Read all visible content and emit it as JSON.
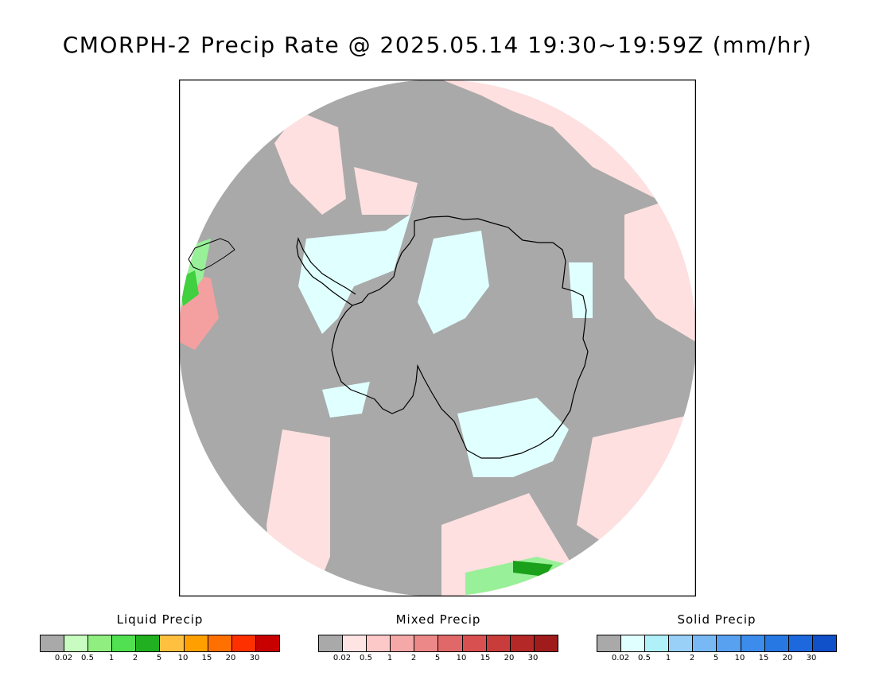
{
  "title": "CMORPH-2 Precip Rate @ 2025.05.14 19:30~19:59Z (mm/hr)",
  "map": {
    "projection": "south-polar-stereographic",
    "colors": {
      "ocean_no_precip": "#a9a9a9",
      "mixed_light": "#ffe0e0",
      "solid_light": "#e0ffff",
      "liquid_light": "#98f098",
      "liquid_mid": "#40d040",
      "liquid_heavy": "#1aa01a",
      "mixed_mid": "#f4a0a0",
      "outline": "#000000"
    }
  },
  "legends": [
    {
      "name": "Liquid Precip",
      "colors": [
        "#a9a9a9",
        "#c8fcc0",
        "#90ee80",
        "#50e050",
        "#20b020",
        "#ffc040",
        "#ffa000",
        "#ff7000",
        "#ff3000",
        "#c80000"
      ],
      "ticks": [
        "0.02",
        "0.5",
        "1",
        "2",
        "5",
        "10",
        "15",
        "20",
        "30"
      ]
    },
    {
      "name": "Mixed Precip",
      "colors": [
        "#a9a9a9",
        "#ffe4e4",
        "#fcc8c8",
        "#f4a8a8",
        "#ec8888",
        "#e06868",
        "#d85050",
        "#c83c3c",
        "#b42828",
        "#a01c1c"
      ],
      "ticks": [
        "0.02",
        "0.5",
        "1",
        "2",
        "5",
        "10",
        "15",
        "20",
        "30"
      ]
    },
    {
      "name": "Solid Precip",
      "colors": [
        "#a9a9a9",
        "#e0ffff",
        "#b0f0f8",
        "#98d0f8",
        "#78b8f4",
        "#58a0f0",
        "#3c8cec",
        "#2878e4",
        "#1c68dc",
        "#1050c8"
      ],
      "ticks": [
        "0.02",
        "0.5",
        "1",
        "2",
        "5",
        "10",
        "15",
        "20",
        "30"
      ]
    }
  ]
}
